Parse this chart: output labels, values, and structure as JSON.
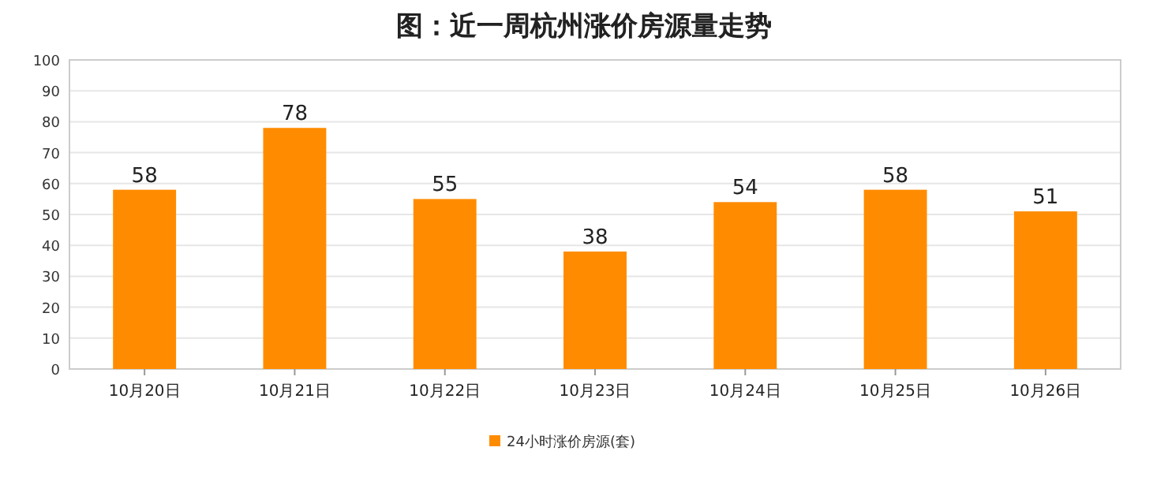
{
  "chart_data": {
    "type": "bar",
    "title": "图：近一周杭州涨价房源量走势",
    "categories": [
      "10月20日",
      "10月21日",
      "10月22日",
      "10月23日",
      "10月24日",
      "10月25日",
      "10月26日"
    ],
    "series": [
      {
        "name": "24小时涨价房源(套)",
        "color": "#ff8c00",
        "values": [
          58,
          78,
          55,
          38,
          54,
          58,
          51
        ]
      }
    ],
    "ylim": [
      0,
      100
    ],
    "yticks": [
      0,
      10,
      20,
      30,
      40,
      50,
      60,
      70,
      80,
      90,
      100
    ],
    "grid": "y",
    "legend": "bottom",
    "data_labels": true
  }
}
